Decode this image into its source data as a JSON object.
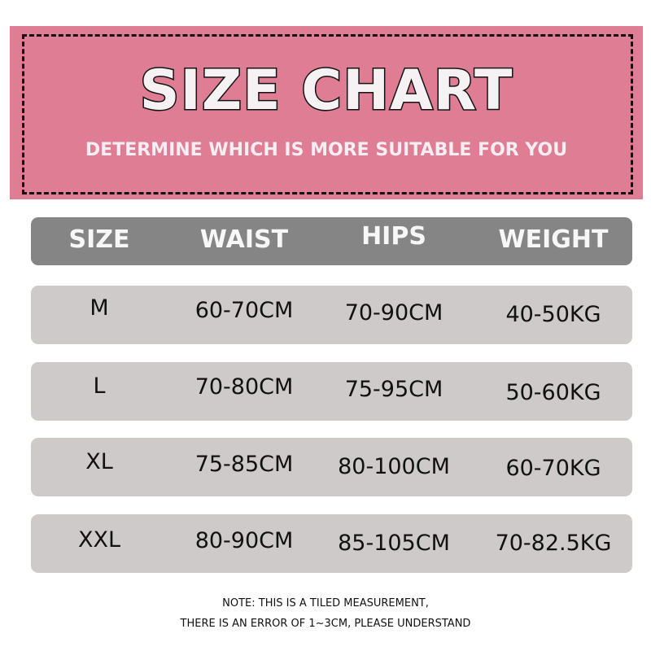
{
  "banner": {
    "title": "SIZE CHART",
    "subtitle": "DETERMINE WHICH IS MORE SUITABLE FOR YOU",
    "color": "#df7d94"
  },
  "table": {
    "headers": [
      "SIZE",
      "WAIST",
      "HIPS",
      "WEIGHT"
    ],
    "rows": [
      [
        "M",
        "60-70CM",
        "70-90CM",
        "40-50KG"
      ],
      [
        "L",
        "70-80CM",
        "75-95CM",
        "50-60KG"
      ],
      [
        "XL",
        "75-85CM",
        "80-100CM",
        "60-70KG"
      ],
      [
        "XXL",
        "80-90CM",
        "85-105CM",
        "70-82.5KG"
      ]
    ]
  },
  "note": {
    "line1": "NOTE: THIS IS A TILED MEASUREMENT,",
    "line2": "THERE IS AN ERROR OF 1~3CM, PLEASE UNDERSTAND"
  }
}
